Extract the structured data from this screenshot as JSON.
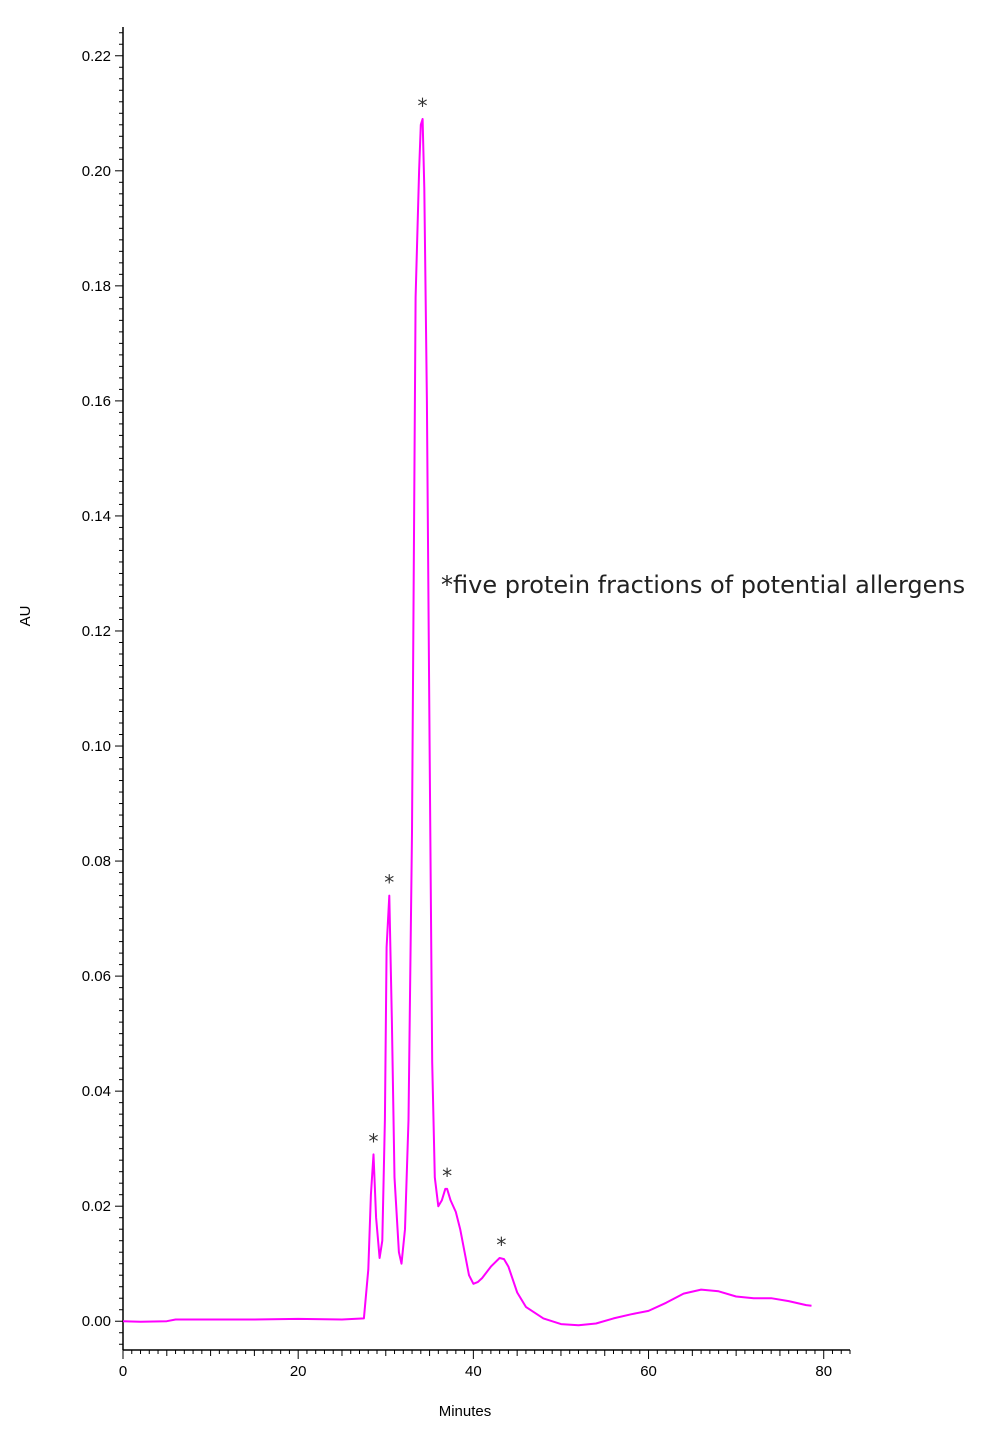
{
  "chart_data": {
    "type": "line",
    "xlabel": "Minutes",
    "ylabel": "AU",
    "xlim": [
      0,
      83
    ],
    "ylim": [
      -0.005,
      0.225
    ],
    "x_ticks": [
      0,
      20,
      40,
      60,
      80
    ],
    "y_ticks": [
      0.0,
      0.02,
      0.04,
      0.06,
      0.08,
      0.1,
      0.12,
      0.14,
      0.16,
      0.18,
      0.2,
      0.22
    ],
    "grid": false,
    "line_color": "#ff00ff",
    "annotation": "*five protein fractions of potential allergens",
    "peak_marker": "*",
    "peaks": [
      {
        "x": 28.6,
        "y": 0.029
      },
      {
        "x": 30.4,
        "y": 0.074
      },
      {
        "x": 34.2,
        "y": 0.209
      },
      {
        "x": 37.0,
        "y": 0.023
      },
      {
        "x": 43.2,
        "y": 0.011
      }
    ],
    "series": [
      {
        "x": [
          0,
          2,
          5,
          6,
          10,
          15,
          20,
          25,
          27.5,
          28.0,
          28.3,
          28.6,
          28.9,
          29.3,
          29.6,
          29.9,
          30.1,
          30.4,
          30.7,
          31.0,
          31.5,
          31.8,
          32.2,
          32.6,
          33.0,
          33.4,
          33.8,
          34.0,
          34.2,
          34.4,
          34.7,
          35.0,
          35.3,
          35.6,
          36.0,
          36.4,
          36.8,
          37.0,
          37.4,
          38.0,
          38.5,
          39.0,
          39.5,
          40.0,
          40.5,
          41.0,
          42.0,
          43.0,
          43.5,
          44.0,
          45.0,
          46.0,
          48.0,
          50.0,
          52.0,
          54.0,
          56.0,
          58.0,
          60.0,
          62.0,
          64.0,
          66.0,
          68.0,
          70.0,
          72.0,
          74.0,
          76.0,
          78.0,
          78.6
        ],
        "y": [
          0.0,
          -0.0001,
          0.0,
          0.0003,
          0.0003,
          0.0003,
          0.0004,
          0.0003,
          0.0005,
          0.009,
          0.022,
          0.029,
          0.018,
          0.011,
          0.014,
          0.035,
          0.065,
          0.074,
          0.052,
          0.025,
          0.012,
          0.01,
          0.016,
          0.035,
          0.085,
          0.178,
          0.2,
          0.208,
          0.209,
          0.197,
          0.16,
          0.1,
          0.045,
          0.025,
          0.02,
          0.021,
          0.023,
          0.023,
          0.021,
          0.019,
          0.016,
          0.012,
          0.008,
          0.0065,
          0.0068,
          0.0075,
          0.0095,
          0.011,
          0.0108,
          0.0095,
          0.005,
          0.0025,
          0.0005,
          -0.0005,
          -0.0007,
          -0.0004,
          0.0005,
          0.0012,
          0.0018,
          0.0032,
          0.0048,
          0.0055,
          0.0052,
          0.0043,
          0.004,
          0.004,
          0.0035,
          0.0028,
          0.0027
        ]
      }
    ]
  }
}
